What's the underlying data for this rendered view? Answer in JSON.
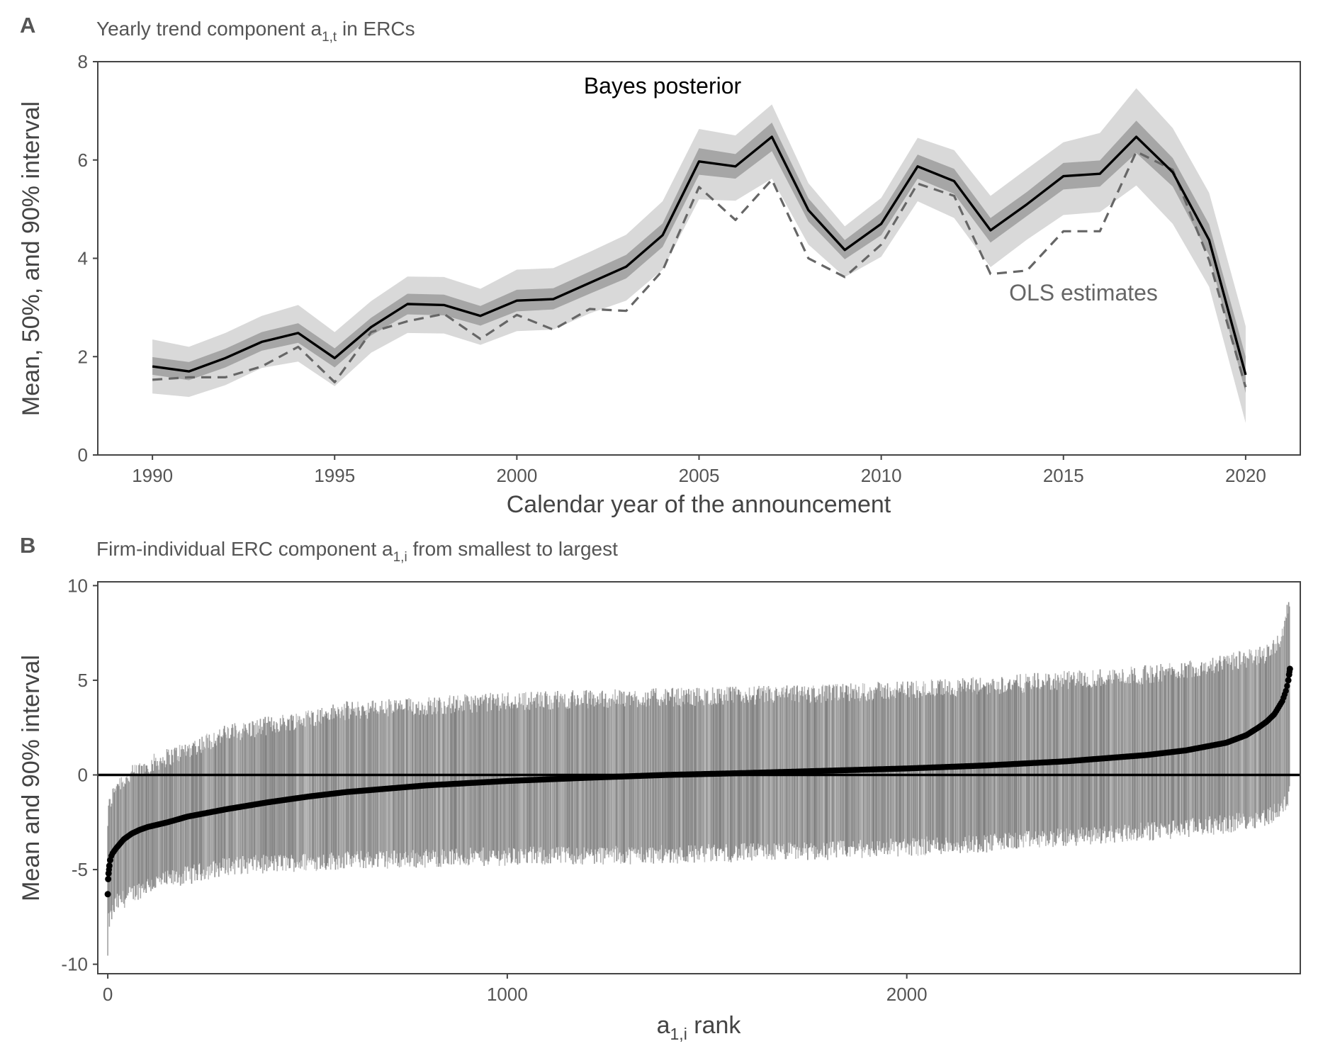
{
  "panels": {
    "a": {
      "letter": "A",
      "subtitle_main": "Yearly trend component a",
      "subtitle_sub": "1,t",
      "subtitle_rest": " in ERCs",
      "ylabel": "Mean, 50%, and 90% interval",
      "xlabel": "Calendar year of the announcement",
      "annotation_bayes": "Bayes posterior",
      "annotation_ols": "OLS estimates"
    },
    "b": {
      "letter": "B",
      "subtitle_main": "Firm-individual ERC component a",
      "subtitle_sub": "1,i",
      "subtitle_rest": " from smallest to largest",
      "ylabel": "Mean and 90% interval",
      "xlabel_main": "a",
      "xlabel_sub": "1,i",
      "xlabel_rest": " rank"
    }
  },
  "colors": {
    "outer_band": "#d9d9d9",
    "inner_band": "#a6a6a6",
    "mean_line": "#000000",
    "ols_line": "#666666",
    "interval_bars": "#6b6b6b",
    "zero_line": "#000000"
  },
  "chart_data": [
    {
      "type": "line",
      "title": "Yearly trend component a1,t in ERCs",
      "xlabel": "Calendar year of the announcement",
      "ylabel": "Mean, 50%, and 90% interval",
      "xlim": [
        1988.5,
        2021.5
      ],
      "ylim": [
        0,
        8
      ],
      "xticks": [
        1990,
        1995,
        2000,
        2005,
        2010,
        2015,
        2020
      ],
      "yticks": [
        0,
        2,
        4,
        6,
        8
      ],
      "grid": false,
      "x": [
        1990,
        1991,
        1992,
        1993,
        1994,
        1995,
        1996,
        1997,
        1998,
        1999,
        2000,
        2001,
        2002,
        2003,
        2004,
        2005,
        2006,
        2007,
        2008,
        2009,
        2010,
        2011,
        2012,
        2013,
        2014,
        2015,
        2016,
        2017,
        2018,
        2019,
        2020
      ],
      "series": [
        {
          "name": "Bayes posterior",
          "role": "mean",
          "values": [
            1.8,
            1.7,
            1.97,
            2.3,
            2.48,
            1.97,
            2.6,
            3.07,
            3.05,
            2.83,
            3.14,
            3.17,
            3.5,
            3.83,
            4.47,
            5.97,
            5.87,
            6.47,
            4.98,
            4.17,
            4.7,
            5.87,
            5.57,
            4.57,
            5.1,
            5.67,
            5.72,
            6.47,
            5.75,
            4.37,
            1.63
          ]
        },
        {
          "name": "50% interval lower",
          "role": "band50_low",
          "values": [
            1.63,
            1.52,
            1.78,
            2.12,
            2.28,
            1.78,
            2.43,
            2.86,
            2.84,
            2.63,
            2.92,
            2.96,
            3.28,
            3.59,
            4.23,
            5.7,
            5.62,
            6.18,
            4.75,
            3.98,
            4.47,
            5.62,
            5.31,
            4.32,
            4.86,
            5.4,
            5.46,
            6.14,
            5.46,
            4.06,
            1.26
          ]
        },
        {
          "name": "50% interval upper",
          "role": "band50_high",
          "values": [
            1.99,
            1.89,
            2.16,
            2.5,
            2.68,
            2.17,
            2.79,
            3.28,
            3.26,
            3.03,
            3.36,
            3.39,
            3.73,
            4.07,
            4.71,
            6.24,
            6.12,
            6.76,
            5.22,
            4.37,
            4.93,
            6.11,
            5.82,
            4.82,
            5.35,
            5.94,
            5.99,
            6.8,
            6.04,
            4.69,
            2.0
          ]
        },
        {
          "name": "90% interval lower",
          "role": "band90_low",
          "values": [
            1.25,
            1.18,
            1.42,
            1.77,
            1.9,
            1.4,
            2.08,
            2.48,
            2.47,
            2.24,
            2.52,
            2.55,
            2.88,
            3.14,
            3.77,
            5.2,
            5.17,
            5.62,
            4.28,
            3.62,
            4.03,
            5.16,
            4.82,
            3.82,
            4.38,
            4.88,
            4.94,
            5.48,
            4.7,
            3.42,
            0.65
          ]
        },
        {
          "name": "90% interval upper",
          "role": "band90_high",
          "values": [
            2.35,
            2.2,
            2.48,
            2.83,
            3.05,
            2.5,
            3.13,
            3.63,
            3.62,
            3.38,
            3.77,
            3.8,
            4.13,
            4.48,
            5.16,
            6.63,
            6.5,
            7.13,
            5.53,
            4.65,
            5.23,
            6.45,
            6.2,
            5.27,
            5.82,
            6.36,
            6.55,
            7.46,
            6.65,
            5.33,
            2.62
          ]
        },
        {
          "name": "OLS estimates",
          "role": "ols",
          "values": [
            1.53,
            1.58,
            1.58,
            1.8,
            2.2,
            1.48,
            2.5,
            2.72,
            2.87,
            2.36,
            2.85,
            2.55,
            2.97,
            2.93,
            3.75,
            5.45,
            4.78,
            5.6,
            4.0,
            3.62,
            4.28,
            5.52,
            5.27,
            3.68,
            3.75,
            4.55,
            4.55,
            6.17,
            5.8,
            3.96,
            1.38
          ]
        }
      ]
    },
    {
      "type": "scatter",
      "title": "Firm-individual ERC component a1,i from smallest to largest",
      "xlabel": "a1,i rank",
      "ylabel": "Mean and 90% interval",
      "xlim": [
        -25,
        2985
      ],
      "ylim": [
        -10.5,
        10.2
      ],
      "xticks": [
        0,
        1000,
        2000
      ],
      "yticks": [
        -10,
        -5,
        0,
        5,
        10
      ],
      "grid": false,
      "reference_line_y": 0,
      "n_points": 2960,
      "mean_profile": {
        "rank": [
          0,
          1,
          2,
          4,
          6,
          10,
          20,
          40,
          60,
          80,
          100,
          150,
          200,
          300,
          400,
          500,
          600,
          800,
          1000,
          1200,
          1400,
          1600,
          1800,
          2000,
          2200,
          2400,
          2600,
          2700,
          2800,
          2850,
          2880,
          2900,
          2920,
          2940,
          2950,
          2955,
          2959
        ],
        "mean": [
          -6.3,
          -5.5,
          -5.2,
          -4.8,
          -4.5,
          -4.2,
          -3.9,
          -3.4,
          -3.1,
          -2.9,
          -2.75,
          -2.5,
          -2.2,
          -1.8,
          -1.45,
          -1.15,
          -0.9,
          -0.55,
          -0.32,
          -0.15,
          0.0,
          0.1,
          0.22,
          0.34,
          0.5,
          0.72,
          1.05,
          1.3,
          1.7,
          2.1,
          2.5,
          2.8,
          3.2,
          3.9,
          4.5,
          5.0,
          5.6
        ]
      },
      "interval_profile": {
        "rank": [
          0,
          2,
          20,
          100,
          300,
          600,
          1000,
          1400,
          1800,
          2200,
          2600,
          2800,
          2900,
          2940,
          2959
        ],
        "low": [
          -9.7,
          -7.8,
          -6.8,
          -5.8,
          -4.8,
          -4.5,
          -4.3,
          -4.2,
          -4.0,
          -3.6,
          -3.0,
          -2.6,
          -2.2,
          -1.8,
          -1.0
        ],
        "high": [
          -2.5,
          -1.8,
          -0.5,
          0.5,
          2.2,
          3.4,
          3.9,
          4.1,
          4.3,
          4.7,
          5.3,
          5.9,
          6.4,
          7.3,
          9.2
        ]
      }
    }
  ]
}
